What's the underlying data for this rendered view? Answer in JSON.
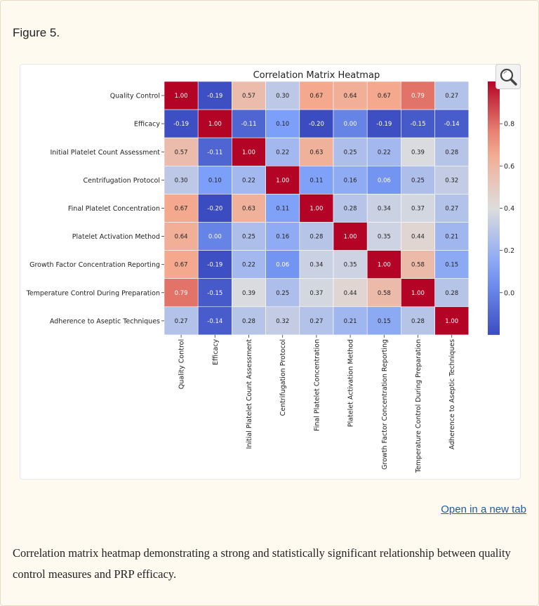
{
  "figure_label": "Figure 5.",
  "open_link": "Open in a new tab",
  "caption": "Correlation matrix heatmap demonstrating a strong and statistically significant relationship between quality control measures and PRP efficacy.",
  "zoom_icon": "magnifier-icon",
  "chart_data": {
    "type": "heatmap",
    "title": "Correlation Matrix Heatmap",
    "labels": [
      "Quality Control",
      "Efficacy",
      "Initial Platelet Count Assessment",
      "Centrifugation Protocol",
      "Final Platelet Concentration",
      "Platelet Activation Method",
      "Growth Factor Concentration Reporting",
      "Temperature Control During Preparation",
      "Adherence to Aseptic Techniques"
    ],
    "values": [
      [
        1.0,
        -0.19,
        0.57,
        0.3,
        0.67,
        0.64,
        0.67,
        0.79,
        0.27
      ],
      [
        -0.19,
        1.0,
        -0.11,
        0.1,
        -0.2,
        0.0,
        -0.19,
        -0.15,
        -0.14
      ],
      [
        0.57,
        -0.11,
        1.0,
        0.22,
        0.63,
        0.25,
        0.22,
        0.39,
        0.28
      ],
      [
        0.3,
        0.1,
        0.22,
        1.0,
        0.11,
        0.16,
        0.06,
        0.25,
        0.32
      ],
      [
        0.67,
        -0.2,
        0.63,
        0.11,
        1.0,
        0.28,
        0.34,
        0.37,
        0.27
      ],
      [
        0.64,
        0.0,
        0.25,
        0.16,
        0.28,
        1.0,
        0.35,
        0.44,
        0.21
      ],
      [
        0.67,
        -0.19,
        0.22,
        0.06,
        0.34,
        0.35,
        1.0,
        0.58,
        0.15
      ],
      [
        0.79,
        -0.15,
        0.39,
        0.25,
        0.37,
        0.44,
        0.58,
        1.0,
        0.28
      ],
      [
        0.27,
        -0.14,
        0.28,
        0.32,
        0.27,
        0.21,
        0.15,
        0.28,
        1.0
      ]
    ],
    "colormap": "coolwarm",
    "vmin": -0.2,
    "vmax": 1.0,
    "colorbar_ticks": [
      "0.0",
      "0.2",
      "0.4",
      "0.6",
      "0.8"
    ],
    "colorbar_tick_values": [
      0.0,
      0.2,
      0.4,
      0.6,
      0.8
    ]
  }
}
